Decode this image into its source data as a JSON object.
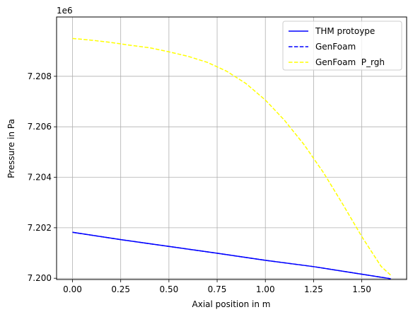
{
  "chart_data": {
    "type": "line",
    "title": "",
    "xlabel": "Axial position in m",
    "ylabel": "Pressure in Pa",
    "y_offset_label": "1e6",
    "xlim": [
      -0.0825,
      1.7325
    ],
    "ylim": [
      7.19995,
      7.21035
    ],
    "x_ticks": [
      0.0,
      0.25,
      0.5,
      0.75,
      1.0,
      1.25,
      1.5
    ],
    "x_tick_labels": [
      "0.00",
      "0.25",
      "0.50",
      "0.75",
      "1.00",
      "1.25",
      "1.50"
    ],
    "y_ticks": [
      7.2,
      7.202,
      7.204,
      7.206,
      7.208
    ],
    "y_tick_labels": [
      "7.200",
      "7.202",
      "7.204",
      "7.206",
      "7.208"
    ],
    "grid": true,
    "legend_position": "top-right",
    "series": [
      {
        "name": "THM protoype",
        "color": "#0000ff",
        "style": "solid",
        "x": [
          0.0,
          0.25,
          0.5,
          0.75,
          1.0,
          1.25,
          1.5,
          1.65
        ],
        "y": [
          7.20182,
          7.20153,
          7.20126,
          7.20099,
          7.20071,
          7.20046,
          7.20016,
          7.19998
        ]
      },
      {
        "name": "GenFoam",
        "color": "#0000ff",
        "style": "dashed",
        "x": [
          0.0,
          0.25,
          0.5,
          0.75,
          1.0,
          1.25,
          1.5,
          1.65
        ],
        "y": [
          7.20182,
          7.20153,
          7.20126,
          7.20099,
          7.20071,
          7.20046,
          7.20016,
          7.19998
        ]
      },
      {
        "name": "GenFoam  P_rgh",
        "color": "#ffff00",
        "style": "dashed",
        "x": [
          0.0,
          0.1,
          0.2,
          0.3,
          0.4,
          0.5,
          0.6,
          0.7,
          0.8,
          0.9,
          1.0,
          1.1,
          1.2,
          1.3,
          1.4,
          1.5,
          1.6,
          1.65
        ],
        "y": [
          7.2095,
          7.20943,
          7.20934,
          7.20923,
          7.20913,
          7.20897,
          7.20879,
          7.20855,
          7.2082,
          7.20771,
          7.20706,
          7.20625,
          7.2053,
          7.2042,
          7.20295,
          7.20165,
          7.20047,
          7.20012
        ]
      }
    ]
  }
}
